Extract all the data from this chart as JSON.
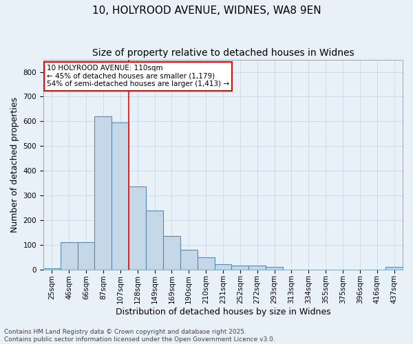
{
  "title_line1": "10, HOLYROOD AVENUE, WIDNES, WA8 9EN",
  "title_line2": "Size of property relative to detached houses in Widnes",
  "xlabel": "Distribution of detached houses by size in Widnes",
  "ylabel": "Number of detached properties",
  "categories": [
    "25sqm",
    "46sqm",
    "66sqm",
    "87sqm",
    "107sqm",
    "128sqm",
    "149sqm",
    "169sqm",
    "190sqm",
    "210sqm",
    "231sqm",
    "252sqm",
    "272sqm",
    "293sqm",
    "313sqm",
    "334sqm",
    "355sqm",
    "375sqm",
    "396sqm",
    "416sqm",
    "437sqm"
  ],
  "bar_values": [
    5,
    110,
    110,
    620,
    595,
    335,
    240,
    135,
    80,
    50,
    22,
    15,
    15,
    10,
    0,
    0,
    0,
    0,
    0,
    0,
    10
  ],
  "bar_color": "#c5d8e8",
  "bar_edge_color": "#5a8ab0",
  "vline_x": 4.5,
  "vline_color": "red",
  "annotation_text": "10 HOLYROOD AVENUE: 110sqm\n← 45% of detached houses are smaller (1,179)\n54% of semi-detached houses are larger (1,413) →",
  "annotation_box_color": "white",
  "annotation_box_edge_color": "red",
  "ylim": [
    0,
    850
  ],
  "yticks": [
    0,
    100,
    200,
    300,
    400,
    500,
    600,
    700,
    800
  ],
  "grid_color": "#c8d8e8",
  "background_color": "#e8f0f8",
  "footer_text": "Contains HM Land Registry data © Crown copyright and database right 2025.\nContains public sector information licensed under the Open Government Licence v3.0.",
  "title_fontsize": 11,
  "subtitle_fontsize": 10,
  "axis_label_fontsize": 9,
  "tick_fontsize": 7.5,
  "footer_fontsize": 6.5,
  "ann_fontsize": 7.5
}
